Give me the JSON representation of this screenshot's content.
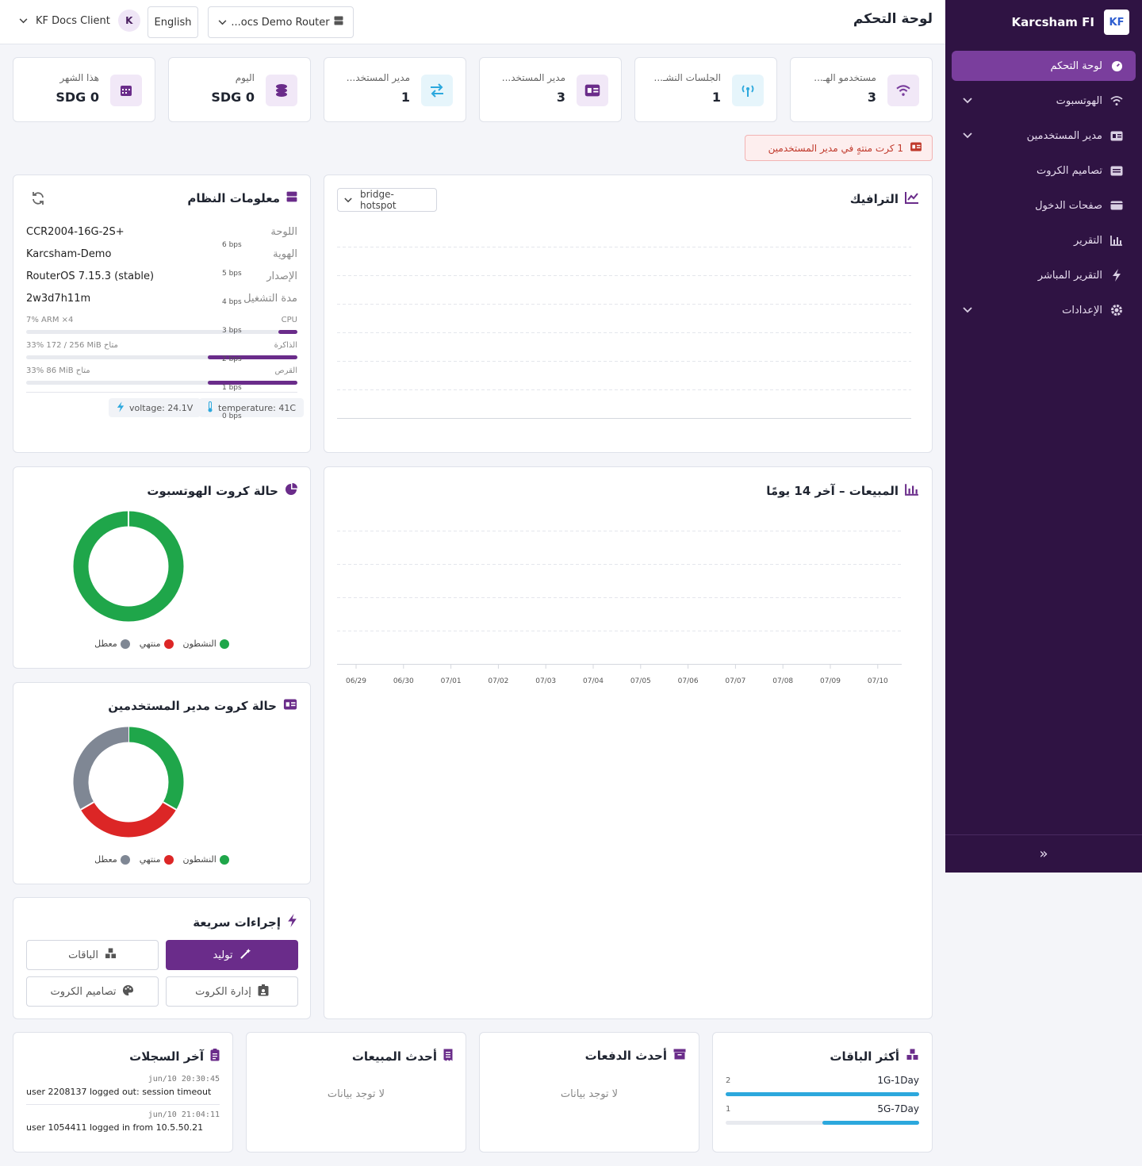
{
  "sidebar": {
    "brand": "Karcsham FI",
    "brand_logo": "KF",
    "items": [
      {
        "label": "لوحة التحكم",
        "icon": "gauge-icon",
        "active": true
      },
      {
        "label": "الهوتسبوت",
        "icon": "wifi-icon",
        "expandable": true
      },
      {
        "label": "مدير المستخدمين",
        "icon": "id-card-icon",
        "expandable": true
      },
      {
        "label": "تصاميم الكروت",
        "icon": "card-design-icon"
      },
      {
        "label": "صفحات الدخول",
        "icon": "login-page-icon"
      },
      {
        "label": "التقرير",
        "icon": "bar-report-icon"
      },
      {
        "label": "التقرير المباشر",
        "icon": "bolt-icon"
      },
      {
        "label": "الإعدادات",
        "icon": "gear-icon",
        "expandable": true
      }
    ],
    "collapse_glyph": "»"
  },
  "header": {
    "title": "لوحة التحكم",
    "client_name": "KF Docs Client",
    "client_initial": "K",
    "language": "English",
    "router": "...ocs Demo Router"
  },
  "stats": [
    {
      "label": "مستخدمو الهـ...",
      "value": "3",
      "icon": "wifi-icon",
      "color": "#7a3e9d",
      "bg": "#f1e8f7"
    },
    {
      "label": "الجلسات النشـ...",
      "value": "1",
      "icon": "antenna-icon",
      "color": "#2ca8dd",
      "bg": "#e6f5fb"
    },
    {
      "label": "مدير المستخد...",
      "value": "3",
      "icon": "id-card-icon",
      "color": "#6a2c8a",
      "bg": "#f1e8f7"
    },
    {
      "label": "مدير المستخد...",
      "value": "1",
      "icon": "swap-icon",
      "color": "#2ca8dd",
      "bg": "#e6f5fb"
    },
    {
      "label": "اليوم",
      "value": "SDG 0",
      "icon": "coins-icon",
      "color": "#6a2c8a",
      "bg": "#f1e8f7"
    },
    {
      "label": "هذا الشهر",
      "value": "SDG 0",
      "icon": "calendar-icon",
      "color": "#6a2c8a",
      "bg": "#f1e8f7"
    }
  ],
  "alert": "1 كرت منتهٍ في مدير المستخدمين",
  "traffic": {
    "title": "الترافيك",
    "interface": "bridge-hotspot",
    "y_ticks": [
      "6 bps",
      "5 bps",
      "4 bps",
      "3 bps",
      "2 bps",
      "1 bps",
      "0 bps"
    ]
  },
  "system": {
    "title": "معلومات النظام",
    "board_label": "اللوحة",
    "board": "CCR2004-16G-2S+",
    "identity_label": "الهوية",
    "identity": "Karcsham-Demo",
    "version_label": "الإصدار",
    "version": "RouterOS 7.15.3 (stable)",
    "uptime_label": "مدة التشغيل",
    "uptime": "2w3d7h11m",
    "cpu_label": "CPU",
    "cpu_text": "7% ARM ×4",
    "cpu_pct": 7,
    "mem_label": "الذاكرة",
    "mem_text": "33% 172 / 256 MiB متاح",
    "mem_pct": 33,
    "disk_label": "القرص",
    "disk_text": "33% 86 MiB متاح",
    "disk_pct": 33,
    "voltage": "voltage: 24.1V",
    "temperature": "temperature: 41C"
  },
  "sales": {
    "title": "المبيعات – آخر 14 يومًا",
    "x_ticks": [
      "06/29",
      "06/30",
      "07/01",
      "07/02",
      "07/03",
      "07/04",
      "07/05",
      "07/06",
      "07/07",
      "07/08",
      "07/09",
      "07/10"
    ]
  },
  "hotspot_cards": {
    "title": "حالة كروت الهوتسبوت",
    "legend": [
      "النشطون",
      "منتهي",
      "معطل"
    ],
    "values": [
      1,
      0,
      0
    ]
  },
  "um_cards": {
    "title": "حالة كروت مدير المستخدمين",
    "legend": [
      "النشطون",
      "منتهي",
      "معطل"
    ],
    "values": [
      1,
      1,
      1
    ]
  },
  "chart_data": [
    {
      "type": "pie",
      "title": "حالة كروت الهوتسبوت",
      "categories": [
        "النشطون",
        "منتهي",
        "معطل"
      ],
      "values": [
        1,
        0,
        0
      ],
      "colors": [
        "#1fa64a",
        "#dc2626",
        "#7f8794"
      ]
    },
    {
      "type": "pie",
      "title": "حالة كروت مدير المستخدمين",
      "categories": [
        "النشطون",
        "منتهي",
        "معطل"
      ],
      "values": [
        1,
        1,
        1
      ],
      "colors": [
        "#1fa64a",
        "#dc2626",
        "#7f8794"
      ]
    }
  ],
  "quick": {
    "title": "إجراءات سريعة",
    "generate": "توليد",
    "packages": "الباقات",
    "manage_cards": "إدارة الكروت",
    "card_designs": "تصاميم الكروت"
  },
  "top_packages": {
    "title": "أكثر الباقات",
    "items": [
      {
        "name": "1G-1Day",
        "count": "2",
        "pct": 100
      },
      {
        "name": "5G-7Day",
        "count": "1",
        "pct": 50
      }
    ]
  },
  "payments": {
    "title": "أحدث الدفعات",
    "empty": "لا توجد بيانات"
  },
  "recent_sales": {
    "title": "أحدث المبيعات",
    "empty": "لا توجد بيانات"
  },
  "logs": {
    "title": "آخر السجلات",
    "items": [
      {
        "time": "jun/10 20:30:45",
        "msg": "user 2208137 logged out: session timeout"
      },
      {
        "time": "jun/10 21:04:11",
        "msg": "user 1054411 logged in from 10.5.50.21"
      }
    ]
  }
}
